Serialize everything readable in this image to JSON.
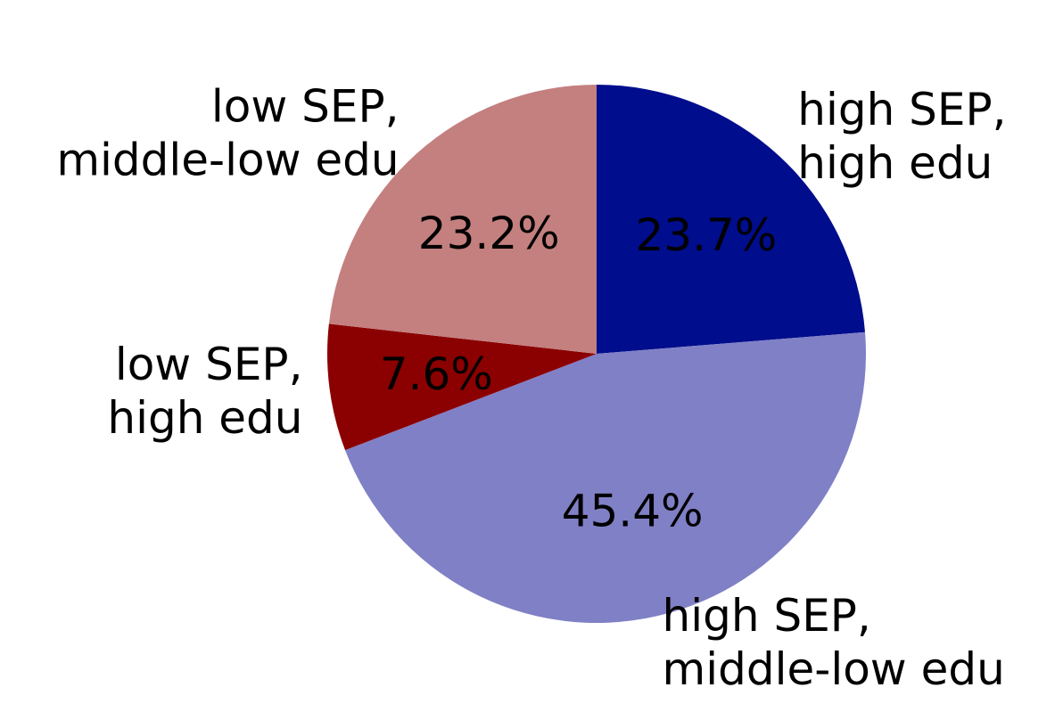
{
  "chart_data": {
    "type": "pie",
    "title": "",
    "slices": [
      {
        "label_lines": [
          "high SEP,",
          "high edu"
        ],
        "value": 23.7,
        "pct_text": "23.7%",
        "color": "#000d8c"
      },
      {
        "label_lines": [
          "high SEP,",
          "middle-low edu"
        ],
        "value": 45.4,
        "pct_text": "45.4%",
        "color": "#8080c6"
      },
      {
        "label_lines": [
          "low SEP,",
          "high edu"
        ],
        "value": 7.6,
        "pct_text": "7.6%",
        "color": "#8b0000"
      },
      {
        "label_lines": [
          "low SEP,",
          "middle-low edu"
        ],
        "value": 23.2,
        "pct_text": "23.2%",
        "color": "#c47f7f"
      }
    ],
    "start_angle": "top",
    "direction": "clockwise",
    "legend": "none"
  }
}
